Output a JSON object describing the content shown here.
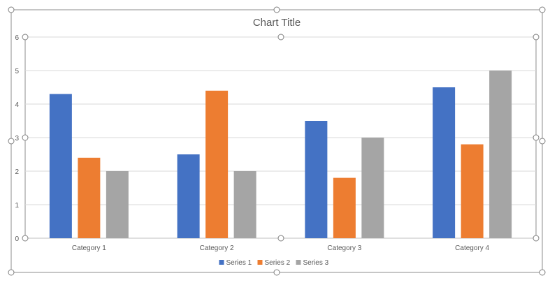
{
  "chart_data": {
    "type": "bar",
    "title": "Chart Title",
    "categories": [
      "Category 1",
      "Category 2",
      "Category 3",
      "Category 4"
    ],
    "series": [
      {
        "name": "Series 1",
        "values": [
          4.3,
          2.5,
          3.5,
          4.5
        ],
        "color": "#4472C4"
      },
      {
        "name": "Series 2",
        "values": [
          2.4,
          4.4,
          1.8,
          2.8
        ],
        "color": "#ED7D31"
      },
      {
        "name": "Series 3",
        "values": [
          2.0,
          2.0,
          3.0,
          5.0
        ],
        "color": "#A5A5A5"
      }
    ],
    "ylim": [
      0,
      6
    ],
    "yticks": [
      "0",
      "1",
      "2",
      "3",
      "4",
      "5",
      "6"
    ],
    "grid": true,
    "legend_position": "bottom",
    "xlabel": "",
    "ylabel": ""
  },
  "colors": {
    "gridline": "#d9d9d9",
    "axis_text": "#595959",
    "title_text": "#595959",
    "selection_frame": "#8c8c8c"
  }
}
